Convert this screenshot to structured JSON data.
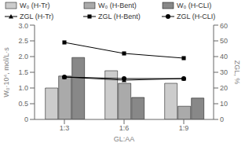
{
  "chart_data": {
    "type": "bar",
    "categories": [
      "1:3",
      "1:6",
      "1:9"
    ],
    "xlabel": "GL:AA",
    "ylabel": "W₀·10⁴, mol/L·s",
    "y2label": "ZGL, %",
    "ylim": [
      0,
      3.0
    ],
    "yticks": [
      0,
      0.5,
      {
        "value": 1.0,
        "label": "1.0"
      },
      1.5,
      {
        "value": 2.0,
        "label": "2.0"
      },
      2.5,
      {
        "value": 3.0,
        "label": "3.0"
      }
    ],
    "y2lim": [
      0,
      60
    ],
    "y2ticks": [
      0,
      10,
      20,
      30,
      40,
      50,
      60
    ],
    "legend": "top",
    "series": [
      {
        "name": "W₀ (H-Tr)",
        "type": "bar",
        "color": "#cccccc",
        "values": [
          1.0,
          1.55,
          1.15
        ]
      },
      {
        "name": "W₀ (H-Bent)",
        "type": "bar",
        "color": "#aaaaaa",
        "values": [
          1.38,
          1.15,
          0.42
        ]
      },
      {
        "name": "W₀ (H-CLI)",
        "type": "bar",
        "color": "#888888",
        "values": [
          1.97,
          0.7,
          0.68
        ]
      },
      {
        "name": "ZGL (H-Tr)",
        "type": "line",
        "axis": "y2",
        "color": "#000000",
        "marker": "triangle",
        "values": [
          27,
          25,
          26
        ]
      },
      {
        "name": "ZGL (H-Bent)",
        "type": "line",
        "axis": "y2",
        "color": "#000000",
        "marker": "square",
        "values": [
          49,
          42,
          39
        ]
      },
      {
        "name": "ZGL (H-CLI)",
        "type": "line",
        "axis": "y2",
        "color": "#000000",
        "marker": "circle",
        "values": [
          27,
          26,
          26
        ]
      }
    ]
  }
}
